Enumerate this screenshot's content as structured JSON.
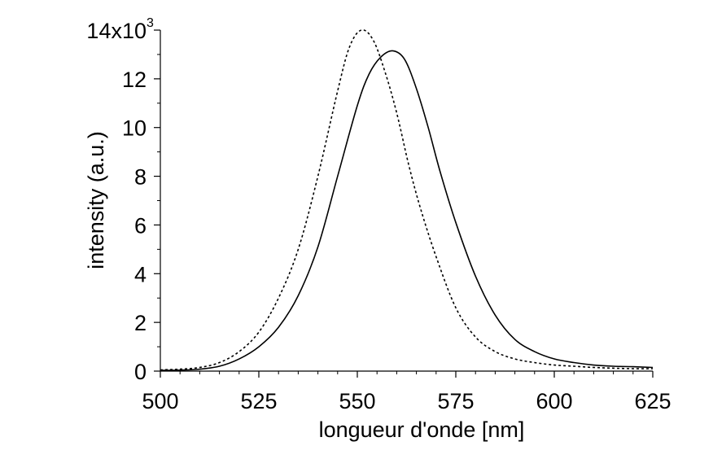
{
  "chart_data": {
    "type": "line",
    "title": "",
    "xlabel": "longueur d'onde [nm]",
    "ylabel": "intensity (a.u.)",
    "xlim": [
      500,
      625
    ],
    "ylim": [
      0,
      14000
    ],
    "x_ticks": [
      500,
      525,
      550,
      575,
      600,
      625
    ],
    "x_tick_labels": [
      "500",
      "525",
      "550",
      "575",
      "600",
      "625"
    ],
    "y_ticks": [
      0,
      2000,
      4000,
      6000,
      8000,
      10000,
      12000,
      14000
    ],
    "y_tick_labels": [
      "0",
      "2",
      "4",
      "6",
      "8",
      "10",
      "12",
      "14x10"
    ],
    "y_multiplier_exponent": "3",
    "grid": false,
    "legend": "none",
    "series": [
      {
        "style": "dotted",
        "color": "#000000",
        "x": [
          500,
          505,
          510,
          515,
          520,
          525,
          530,
          535,
          540,
          545,
          548,
          551,
          554,
          557,
          560,
          563,
          566,
          570,
          575,
          580,
          585,
          590,
          595,
          600,
          605,
          610,
          615,
          620,
          625
        ],
        "y": [
          50,
          80,
          150,
          350,
          800,
          1600,
          3000,
          5000,
          8000,
          11500,
          13300,
          14000,
          13600,
          12300,
          10600,
          8500,
          6700,
          4700,
          2600,
          1400,
          800,
          500,
          350,
          250,
          200,
          150,
          120,
          100,
          100
        ]
      },
      {
        "style": "solid",
        "color": "#000000",
        "x": [
          500,
          505,
          510,
          515,
          520,
          525,
          530,
          535,
          540,
          545,
          550,
          553,
          556,
          559,
          562,
          565,
          568,
          571,
          575,
          580,
          585,
          590,
          595,
          600,
          605,
          610,
          615,
          620,
          625
        ],
        "y": [
          30,
          40,
          80,
          200,
          500,
          1000,
          1800,
          3100,
          5100,
          8000,
          10900,
          12200,
          12900,
          13150,
          12800,
          11600,
          10000,
          8200,
          6100,
          3900,
          2300,
          1300,
          800,
          500,
          350,
          250,
          200,
          180,
          150
        ]
      }
    ]
  }
}
